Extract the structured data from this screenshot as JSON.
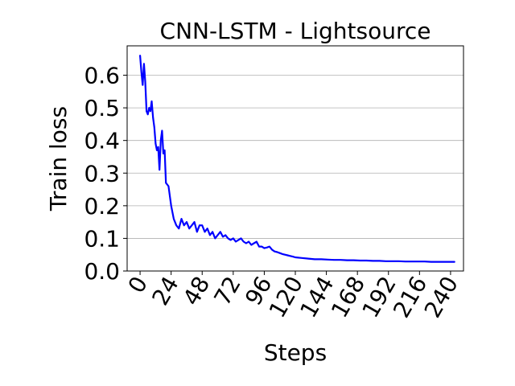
{
  "chart_data": {
    "type": "line",
    "title": "CNN-LSTM - Lightsource",
    "xlabel": "Steps",
    "ylabel": "Train loss",
    "xlim": [
      -10,
      250
    ],
    "ylim": [
      0,
      0.69
    ],
    "xticks": [
      0,
      24,
      48,
      72,
      96,
      120,
      144,
      168,
      192,
      216,
      240
    ],
    "yticks": [
      0.0,
      0.1,
      0.2,
      0.3,
      0.4,
      0.5,
      0.6
    ],
    "ytick_labels": [
      "0.0",
      "0.1",
      "0.2",
      "0.3",
      "0.4",
      "0.5",
      "0.6"
    ],
    "grid": "horizontal",
    "series": [
      {
        "color": "#0000ff",
        "x": [
          0,
          1,
          2,
          3,
          4,
          5,
          6,
          7,
          8,
          9,
          10,
          11,
          12,
          13,
          14,
          15,
          16,
          17,
          18,
          19,
          20,
          22,
          24,
          26,
          28,
          30,
          32,
          34,
          36,
          38,
          40,
          42,
          44,
          46,
          48,
          50,
          52,
          54,
          56,
          58,
          60,
          62,
          64,
          66,
          68,
          70,
          72,
          74,
          76,
          78,
          80,
          82,
          84,
          86,
          88,
          90,
          92,
          94,
          96,
          98,
          100,
          102,
          104,
          106,
          108,
          110,
          112,
          114,
          116,
          118,
          120,
          125,
          130,
          135,
          140,
          145,
          150,
          155,
          160,
          165,
          170,
          175,
          180,
          185,
          190,
          195,
          200,
          205,
          210,
          215,
          220,
          225,
          230,
          235,
          240,
          243
        ],
        "y": [
          0.66,
          0.61,
          0.57,
          0.635,
          0.58,
          0.49,
          0.48,
          0.5,
          0.49,
          0.52,
          0.47,
          0.44,
          0.39,
          0.37,
          0.38,
          0.31,
          0.4,
          0.43,
          0.36,
          0.37,
          0.27,
          0.26,
          0.2,
          0.16,
          0.14,
          0.13,
          0.16,
          0.14,
          0.15,
          0.13,
          0.14,
          0.15,
          0.12,
          0.14,
          0.14,
          0.12,
          0.13,
          0.11,
          0.12,
          0.1,
          0.11,
          0.12,
          0.105,
          0.11,
          0.1,
          0.095,
          0.1,
          0.09,
          0.095,
          0.1,
          0.09,
          0.085,
          0.09,
          0.08,
          0.085,
          0.09,
          0.075,
          0.075,
          0.07,
          0.072,
          0.075,
          0.065,
          0.06,
          0.058,
          0.055,
          0.052,
          0.05,
          0.048,
          0.046,
          0.044,
          0.042,
          0.04,
          0.038,
          0.036,
          0.036,
          0.035,
          0.034,
          0.034,
          0.033,
          0.033,
          0.032,
          0.032,
          0.031,
          0.031,
          0.03,
          0.03,
          0.03,
          0.029,
          0.029,
          0.029,
          0.029,
          0.028,
          0.028,
          0.028,
          0.028,
          0.028
        ]
      }
    ]
  }
}
